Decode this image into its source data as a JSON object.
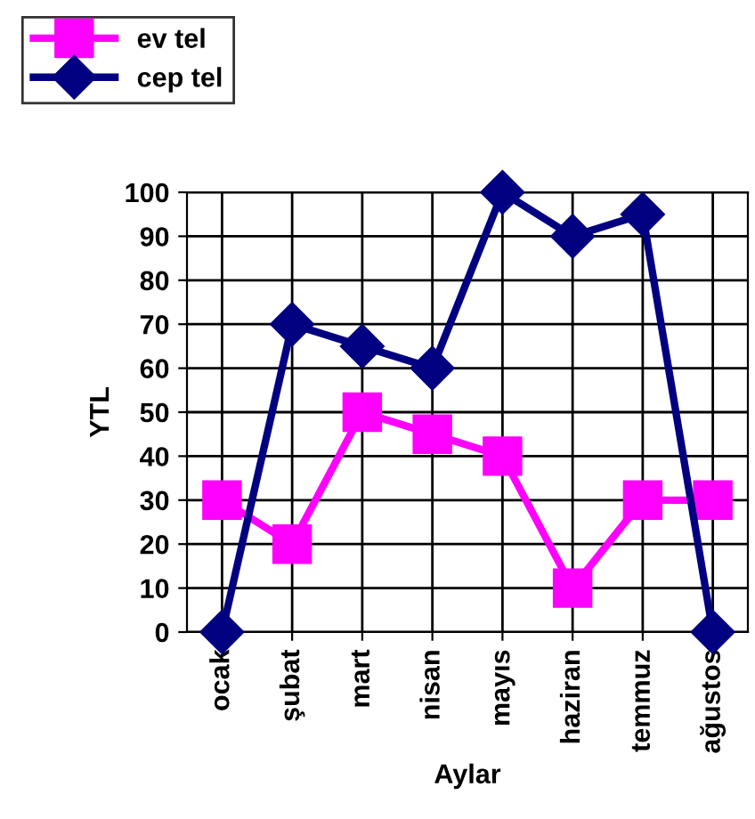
{
  "chart_data": {
    "type": "line",
    "xlabel": "Aylar",
    "ylabel": "YTL",
    "categories": [
      "ocak",
      "şubat",
      "mart",
      "nisan",
      "mayıs",
      "haziran",
      "temmuz",
      "ağustos"
    ],
    "series": [
      {
        "name": "ev tel",
        "color": "#ff00ff",
        "marker": "square",
        "values": [
          30,
          20,
          50,
          45,
          40,
          10,
          30,
          30
        ]
      },
      {
        "name": "cep tel",
        "color": "#000080",
        "marker": "diamond",
        "values": [
          0,
          70,
          65,
          60,
          100,
          90,
          95,
          0
        ]
      }
    ],
    "ylim": [
      0,
      100
    ],
    "yticks": [
      0,
      10,
      20,
      30,
      40,
      50,
      60,
      70,
      80,
      90,
      100
    ],
    "grid": true,
    "legend": "top left",
    "line_style": "solid"
  }
}
